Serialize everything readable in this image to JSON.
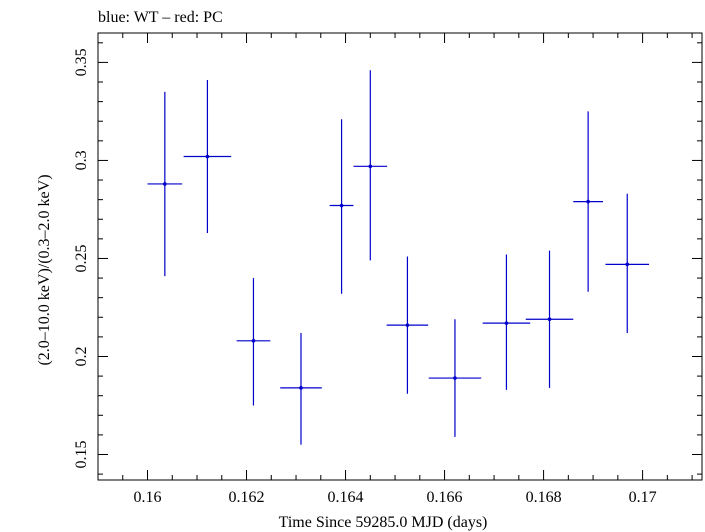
{
  "chart_data": {
    "type": "scatter",
    "title": "blue: WT – red: PC",
    "xlabel": "Time Since 59285.0 MJD (days)",
    "ylabel": "(2.0–10.0 keV)/(0.3–2.0 keV)",
    "xlim": [
      0.159,
      0.1712
    ],
    "ylim": [
      0.137,
      0.365
    ],
    "xticks": [
      0.16,
      0.162,
      0.164,
      0.166,
      0.168,
      0.17
    ],
    "xtick_labels": [
      "0.16",
      "0.162",
      "0.164",
      "0.166",
      "0.168",
      "0.17"
    ],
    "yticks": [
      0.15,
      0.2,
      0.25,
      0.3,
      0.35
    ],
    "ytick_labels": [
      "0.15",
      "0.2",
      "0.25",
      "0.3",
      "0.35"
    ],
    "grid": false,
    "series": [
      {
        "color": "#0000cc",
        "points": [
          {
            "x": 0.16035,
            "xerr": 0.00035,
            "y": 0.288,
            "ylo": 0.241,
            "yhi": 0.335
          },
          {
            "x": 0.16121,
            "xerr": 0.00048,
            "y": 0.302,
            "ylo": 0.263,
            "yhi": 0.341
          },
          {
            "x": 0.16214,
            "xerr": 0.00034,
            "y": 0.208,
            "ylo": 0.175,
            "yhi": 0.24
          },
          {
            "x": 0.1631,
            "xerr": 0.00042,
            "y": 0.184,
            "ylo": 0.155,
            "yhi": 0.212
          },
          {
            "x": 0.16392,
            "xerr": 0.00024,
            "y": 0.277,
            "ylo": 0.232,
            "yhi": 0.321
          },
          {
            "x": 0.1645,
            "xerr": 0.00034,
            "y": 0.297,
            "ylo": 0.249,
            "yhi": 0.346
          },
          {
            "x": 0.16525,
            "xerr": 0.00042,
            "y": 0.216,
            "ylo": 0.181,
            "yhi": 0.251
          },
          {
            "x": 0.16621,
            "xerr": 0.00053,
            "y": 0.189,
            "ylo": 0.159,
            "yhi": 0.219
          },
          {
            "x": 0.16725,
            "xerr": 0.00048,
            "y": 0.217,
            "ylo": 0.183,
            "yhi": 0.252
          },
          {
            "x": 0.16812,
            "xerr": 0.00048,
            "y": 0.219,
            "ylo": 0.184,
            "yhi": 0.254
          },
          {
            "x": 0.1689,
            "xerr": 0.0003,
            "y": 0.279,
            "ylo": 0.233,
            "yhi": 0.325
          },
          {
            "x": 0.16969,
            "xerr": 0.00044,
            "y": 0.247,
            "ylo": 0.212,
            "yhi": 0.283
          }
        ]
      }
    ]
  }
}
